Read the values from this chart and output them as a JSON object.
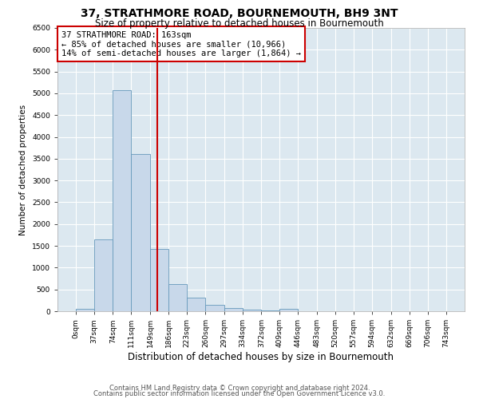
{
  "title": "37, STRATHMORE ROAD, BOURNEMOUTH, BH9 3NT",
  "subtitle": "Size of property relative to detached houses in Bournemouth",
  "xlabel": "Distribution of detached houses by size in Bournemouth",
  "ylabel": "Number of detached properties",
  "bin_edges": [
    0,
    37,
    74,
    111,
    149,
    186,
    223,
    260,
    297,
    334,
    372,
    409,
    446,
    483,
    520,
    557,
    594,
    632,
    669,
    706,
    743
  ],
  "bar_heights": [
    50,
    1650,
    5080,
    3600,
    1420,
    620,
    310,
    145,
    70,
    30,
    10,
    50,
    5,
    2,
    2,
    1,
    1,
    0,
    0,
    0
  ],
  "bar_color": "#c8d8ea",
  "bar_edge_color": "#6699bb",
  "property_size": 163,
  "vline_color": "#cc0000",
  "annotation_text": "37 STRATHMORE ROAD: 163sqm\n← 85% of detached houses are smaller (10,966)\n14% of semi-detached houses are larger (1,864) →",
  "annotation_box_color": "#ffffff",
  "annotation_box_edge_color": "#cc0000",
  "ylim": [
    0,
    6500
  ],
  "yticks": [
    0,
    500,
    1000,
    1500,
    2000,
    2500,
    3000,
    3500,
    4000,
    4500,
    5000,
    5500,
    6000,
    6500
  ],
  "footer1": "Contains HM Land Registry data © Crown copyright and database right 2024.",
  "footer2": "Contains public sector information licensed under the Open Government Licence v3.0.",
  "fig_bg_color": "#ffffff",
  "plot_bg_color": "#dce8f0",
  "grid_color": "#ffffff",
  "title_fontsize": 10,
  "subtitle_fontsize": 8.5,
  "xlabel_fontsize": 8.5,
  "ylabel_fontsize": 7.5,
  "tick_fontsize": 6.5,
  "annotation_fontsize": 7.5,
  "footer_fontsize": 6
}
